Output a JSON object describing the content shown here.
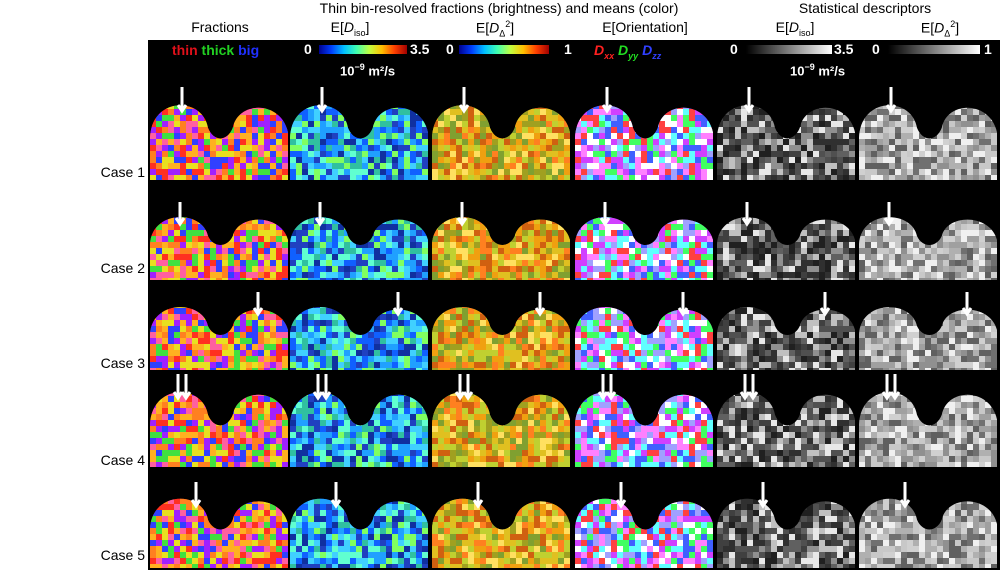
{
  "headers": {
    "fractions": "Fractions",
    "thin_bin_group": "Thin bin-resolved fractions (brightness) and means (color)",
    "stat_group": "Statistical descriptors",
    "col_diso_prefix": "E[",
    "col_diso_D": "D",
    "col_diso_sub": "iso",
    "col_diso_suffix": "]",
    "col_dd_prefix": "E[",
    "col_dd_D": "D",
    "col_dd_sub": "Δ",
    "col_dd_sup": "2",
    "col_dd_suffix": "]",
    "col_orient": "E[Orientation]"
  },
  "legends": {
    "fractions_thin": "thin",
    "fractions_thick": "thick",
    "fractions_big": "big",
    "diso_min": "0",
    "diso_max": "3.5",
    "dd_min": "0",
    "dd_max": "1",
    "orient_xx_D": "D",
    "orient_xx_sub": "xx",
    "orient_yy_D": "D",
    "orient_yy_sub": "yy",
    "orient_zz_D": "D",
    "orient_zz_sub": "zz",
    "unit_text": "10",
    "unit_exp": "−9",
    "unit_tail": " m²/s"
  },
  "cases": [
    "Case 1",
    "Case 2",
    "Case 3",
    "Case 4",
    "Case 5"
  ],
  "colors": {
    "thin": "#e0101a",
    "thick": "#22d022",
    "big": "#2030ff",
    "xx": "#ff2020",
    "yy": "#22dd22",
    "zz": "#3040ff"
  }
}
